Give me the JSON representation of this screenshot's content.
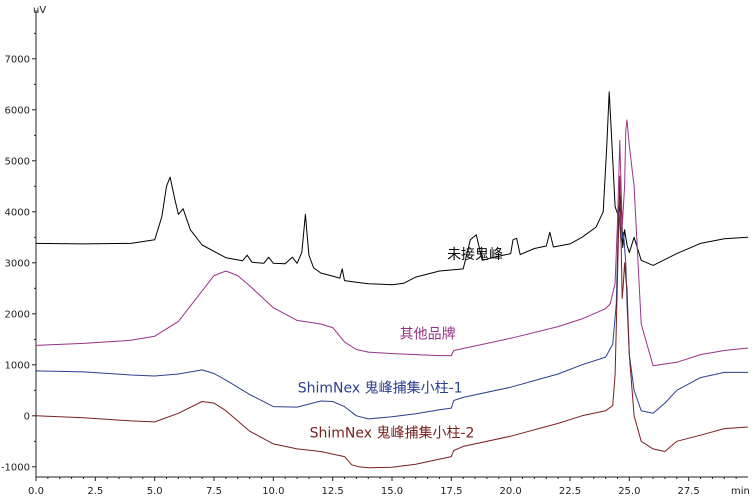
{
  "chart_data": {
    "type": "line",
    "title": "",
    "xlabel": "min",
    "ylabel": "uV",
    "xlim": [
      0,
      30
    ],
    "ylim": [
      -1200,
      7800
    ],
    "x_ticks": [
      0.0,
      2.5,
      5.0,
      7.5,
      10.0,
      12.5,
      15.0,
      17.5,
      20.0,
      22.5,
      25.0,
      27.5
    ],
    "x_tick_labels": [
      "0.0",
      "2.5",
      "5.0",
      "7.5",
      "10.0",
      "12.5",
      "15.0",
      "17.5",
      "20.0",
      "22.5",
      "25.0",
      "27.5"
    ],
    "y_ticks": [
      -1000,
      0,
      1000,
      2000,
      3000,
      4000,
      5000,
      6000,
      7000
    ],
    "y_tick_labels": [
      "-1000",
      "0",
      "1000",
      "2000",
      "3000",
      "4000",
      "5000",
      "6000",
      "7000"
    ],
    "grid": false,
    "series": [
      {
        "name": "未接鬼峰",
        "color": "#000000",
        "label_at": [
          18.5,
          3070
        ],
        "x": [
          0,
          2,
          4,
          5,
          5.3,
          5.5,
          5.65,
          5.85,
          6.0,
          6.2,
          6.5,
          7,
          8,
          8.7,
          8.9,
          9.1,
          9.6,
          9.8,
          10,
          10.5,
          10.8,
          11,
          11.2,
          11.35,
          11.5,
          11.7,
          12,
          12.5,
          12.8,
          12.9,
          13,
          13.5,
          14,
          15,
          15.5,
          16,
          17,
          18,
          18.3,
          18.55,
          18.8,
          19.5,
          20,
          20.1,
          20.25,
          20.4,
          21,
          21.5,
          21.65,
          21.8,
          22.5,
          23,
          23.6,
          23.9,
          24.05,
          24.15,
          24.25,
          24.4,
          24.55,
          24.65,
          24.72,
          24.8,
          24.9,
          25.0,
          25.2,
          25.5,
          26,
          27,
          28,
          29,
          30
        ],
        "y": [
          3380,
          3370,
          3380,
          3450,
          3900,
          4500,
          4680,
          4250,
          3950,
          4060,
          3650,
          3350,
          3100,
          3040,
          3150,
          3010,
          2990,
          3110,
          2990,
          2980,
          3110,
          2990,
          3200,
          3950,
          3150,
          2900,
          2800,
          2740,
          2700,
          2880,
          2650,
          2620,
          2590,
          2570,
          2600,
          2720,
          2840,
          2880,
          3450,
          3550,
          3050,
          3130,
          3180,
          3450,
          3480,
          3160,
          3280,
          3330,
          3600,
          3310,
          3370,
          3500,
          3700,
          4000,
          5300,
          6350,
          5500,
          4100,
          3900,
          4300,
          3300,
          3650,
          3350,
          3200,
          3500,
          3050,
          2950,
          3180,
          3380,
          3470,
          3500
        ]
      },
      {
        "name": "其他品牌",
        "color": "#993388",
        "label_at": [
          16.5,
          1520
        ],
        "x": [
          0,
          2,
          4,
          5,
          6,
          7,
          7.5,
          8,
          8.5,
          9,
          10,
          11,
          12,
          12.5,
          13,
          13.5,
          14,
          15,
          16,
          17,
          17.5,
          17.6,
          18,
          20,
          22,
          23,
          24,
          24.2,
          24.4,
          24.5,
          24.6,
          24.7,
          24.8,
          24.85,
          24.9,
          25.0,
          25.2,
          25.5,
          26,
          27,
          28,
          29,
          30
        ],
        "y": [
          1380,
          1420,
          1480,
          1560,
          1850,
          2450,
          2750,
          2840,
          2750,
          2550,
          2120,
          1870,
          1800,
          1730,
          1450,
          1300,
          1250,
          1220,
          1200,
          1180,
          1180,
          1280,
          1320,
          1520,
          1750,
          1900,
          2100,
          2200,
          2600,
          3800,
          5400,
          3700,
          4500,
          5600,
          5800,
          5300,
          4500,
          1800,
          980,
          1050,
          1200,
          1280,
          1330
        ]
      },
      {
        "name": "ShimNex 鬼峰捕集小柱-1",
        "color": "#2b3f8f",
        "label_at": [
          14.5,
          460
        ],
        "x": [
          0,
          2,
          4,
          5,
          6,
          7,
          7.5,
          8,
          9,
          10,
          11,
          12,
          12.5,
          13,
          13.5,
          14,
          15,
          16,
          17,
          17.5,
          17.6,
          18,
          20,
          22,
          23,
          24,
          24.3,
          24.45,
          24.55,
          24.65,
          24.75,
          24.85,
          24.9,
          25.0,
          25.2,
          25.5,
          26,
          26.5,
          27,
          28,
          29,
          30
        ],
        "y": [
          880,
          860,
          800,
          780,
          820,
          900,
          830,
          700,
          420,
          180,
          170,
          290,
          280,
          180,
          0,
          -60,
          -20,
          40,
          120,
          150,
          300,
          360,
          560,
          820,
          1000,
          1150,
          1400,
          2200,
          4100,
          3400,
          3600,
          3000,
          2200,
          1200,
          500,
          100,
          50,
          250,
          500,
          750,
          850,
          850
        ]
      },
      {
        "name": "ShimNex 鬼峰捕集小柱-2",
        "color": "#7a1f1f",
        "label_at": [
          15.0,
          -430
        ],
        "x": [
          0,
          2,
          4,
          5,
          6,
          7,
          7.5,
          8,
          9,
          10,
          11,
          12,
          12.5,
          13,
          13.3,
          13.6,
          14,
          15,
          16,
          17,
          17.5,
          17.6,
          18,
          20,
          22,
          23,
          24,
          24.3,
          24.4,
          24.5,
          24.6,
          24.7,
          24.75,
          24.8,
          24.85,
          24.9,
          25.0,
          25.2,
          25.5,
          26,
          26.5,
          27,
          28,
          29,
          30
        ],
        "y": [
          0,
          -40,
          -100,
          -120,
          50,
          280,
          250,
          100,
          -300,
          -550,
          -650,
          -700,
          -750,
          -800,
          -960,
          -1000,
          -1020,
          -1010,
          -950,
          -850,
          -800,
          -680,
          -600,
          -400,
          -150,
          0,
          100,
          200,
          800,
          2700,
          4700,
          2300,
          2600,
          3000,
          2700,
          2500,
          1200,
          0,
          -500,
          -650,
          -700,
          -500,
          -380,
          -250,
          -220
        ]
      }
    ]
  }
}
